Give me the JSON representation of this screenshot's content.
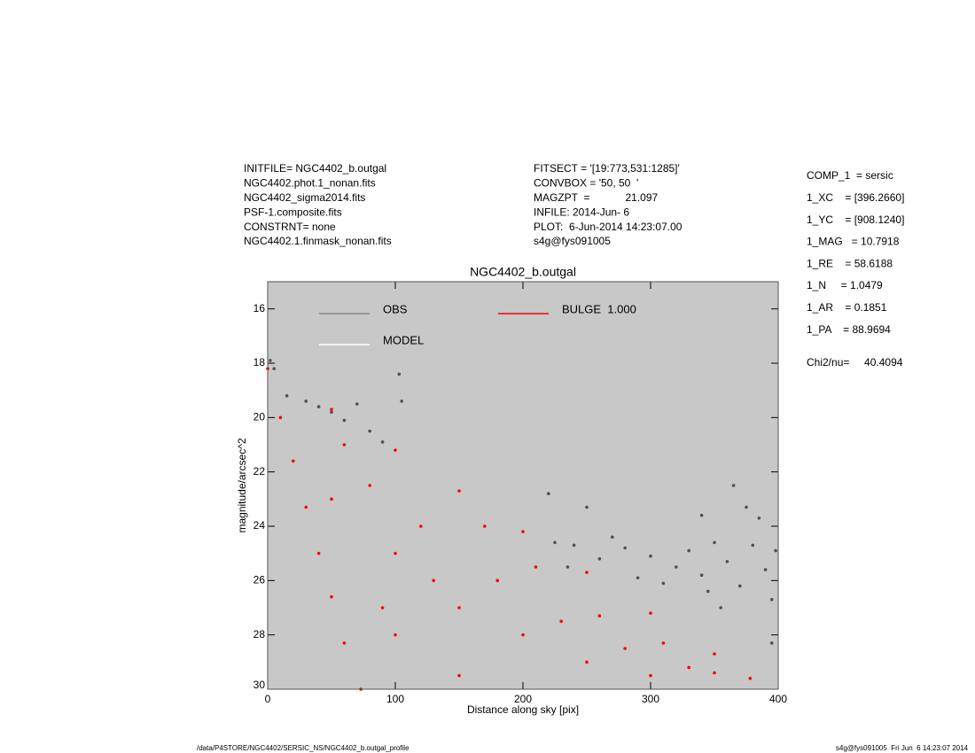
{
  "header": {
    "left": [
      "INITFILE= NGC4402_b.outgal",
      "NGC4402.phot.1_nonan.fits",
      "NGC4402_sigma2014.fits",
      "PSF-1.composite.fits",
      "CONSTRNT= none",
      "NGC4402.1.finmask_nonan.fits"
    ],
    "middle": [
      "FITSECT = '[19:773,531:1285]'",
      "CONVBOX = '50, 50  '",
      "MAGZPT  =            21.097",
      "INFILE: 2014-Jun- 6",
      "PLOT:  6-Jun-2014 14:23:07.00",
      "s4g@fys091005"
    ],
    "right": [
      "COMP_1  = sersic",
      "1_XC    = [396.2660]",
      "1_YC    = [908.1240]",
      "1_MAG   = 10.7918",
      "1_RE    = 58.6188",
      "1_N     = 1.0479",
      "1_AR    = 0.1851",
      "1_PA    = 88.9694"
    ],
    "chi": "Chi2/nu=     40.4094"
  },
  "footer": {
    "left": "/data/P4STORE/NGC4402/SERSIC_NS/NGC4402_b.outgal_profile",
    "right": "s4g@fys091005  Fri Jun  6 14:23:07 2014"
  },
  "chart_data": {
    "type": "scatter",
    "title": "NGC4402_b.outgal",
    "x_label": "Distance along sky [pix]",
    "y_label": "magnitude/arcsec^2",
    "xlim": [
      0,
      400
    ],
    "ylim": [
      30,
      15
    ],
    "xticks": [
      0,
      100,
      200,
      300,
      400
    ],
    "yticks": [
      16,
      18,
      20,
      22,
      24,
      26,
      28,
      30
    ],
    "background": "#c8c8c8",
    "legend": [
      {
        "name": "OBS",
        "color": "#888888"
      },
      {
        "name": "MODEL",
        "color": "#ffffff"
      },
      {
        "name": "BULGE  1.000",
        "color": "#ff0000"
      }
    ],
    "series": [
      {
        "name": "OBS",
        "color": "#505050",
        "x": [
          2,
          5,
          15,
          30,
          40,
          50,
          60,
          70,
          80,
          90,
          103,
          105,
          220,
          225,
          240,
          250,
          260,
          280,
          300,
          320,
          330,
          340,
          350,
          360,
          365,
          370,
          380,
          390,
          398,
          395,
          385,
          310,
          290,
          270,
          235,
          355,
          345,
          375,
          395,
          340
        ],
        "values": [
          17.9,
          18.2,
          19.2,
          19.4,
          19.6,
          19.8,
          20.1,
          19.5,
          20.5,
          20.9,
          18.4,
          19.4,
          22.8,
          24.6,
          24.7,
          23.3,
          25.2,
          24.8,
          25.1,
          25.5,
          24.9,
          25.8,
          24.6,
          25.3,
          22.5,
          26.2,
          24.7,
          25.6,
          24.9,
          26.7,
          23.7,
          26.1,
          25.9,
          24.4,
          25.5,
          27,
          26.4,
          23.3,
          28.3,
          23.6
        ]
      },
      {
        "name": "BULGE  1.000",
        "color": "#ff0000",
        "x": [
          0,
          50,
          100,
          150,
          200,
          250,
          300,
          350,
          378,
          10,
          20,
          30,
          40,
          50,
          60,
          73,
          50,
          100,
          150,
          200,
          250,
          300,
          100,
          150,
          80,
          120,
          180,
          230,
          280,
          330,
          60,
          90,
          130,
          170,
          210,
          260,
          310,
          350
        ],
        "values": [
          18.2,
          19.7,
          21.2,
          22.7,
          24.2,
          25.7,
          27.2,
          28.7,
          29.6,
          20,
          21.6,
          23.3,
          25,
          26.6,
          28.3,
          30,
          23,
          25,
          27,
          28,
          29,
          29.5,
          28,
          29.5,
          22.5,
          24,
          26,
          27.5,
          28.5,
          29.2,
          21,
          27,
          26,
          24,
          25.5,
          27.3,
          28.3,
          29.4
        ]
      }
    ]
  }
}
